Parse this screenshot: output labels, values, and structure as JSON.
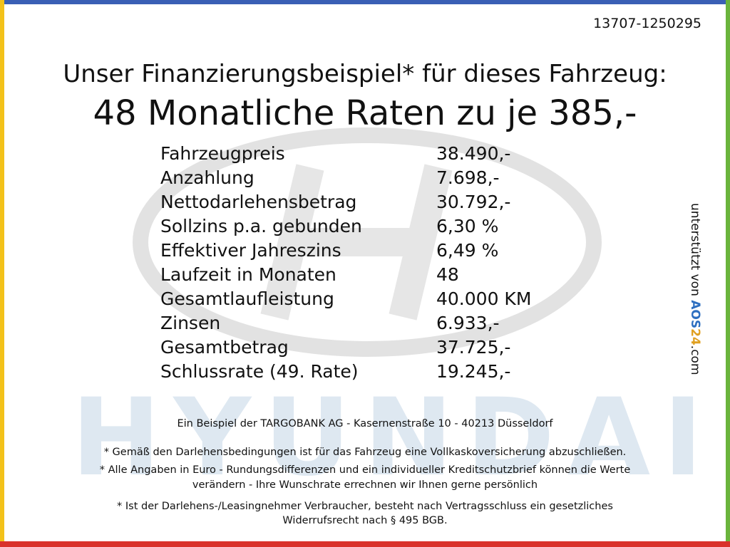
{
  "reference": "13707-1250295",
  "header": {
    "line1": "Unser Finanzierungsbeispiel* für dieses Fahrzeug:",
    "line2": "48 Monatliche Raten zu je 385,-"
  },
  "table": {
    "rows": [
      [
        "Fahrzeugpreis",
        "38.490,-"
      ],
      [
        "Anzahlung",
        "7.698,-"
      ],
      [
        "Nettodarlehensbetrag",
        "30.792,-"
      ],
      [
        "Sollzins p.a. gebunden",
        "6,30 %"
      ],
      [
        "Effektiver Jahreszins",
        "6,49 %"
      ],
      [
        "Laufzeit in Monaten",
        "48"
      ],
      [
        "Gesamtlaufleistung",
        "40.000 KM"
      ],
      [
        "Zinsen",
        "6.933,-"
      ],
      [
        "Gesamtbetrag",
        "37.725,-"
      ],
      [
        "Schlussrate (49. Rate)",
        "19.245,-"
      ]
    ]
  },
  "watermark": "HYUNDAI",
  "lender": "Ein Beispiel der TARGOBANK AG - Kasernenstraße 10 - 40213 Düsseldorf",
  "notes": [
    [
      "* Gemäß den Darlehensbedingungen ist für das Fahrzeug eine Vollkaskoversicherung abzuschließen."
    ],
    [
      "* Alle Angaben in Euro - Rundungsdifferenzen und ein individueller Kreditschutzbrief können die Werte",
      "verändern - Ihre Wunschrate errechnen wir Ihnen gerne persönlich"
    ],
    [
      "* Ist der Darlehens-/Leasingnehmer Verbraucher, besteht nach Vertragsschluss ein gesetzliches",
      "Widerrufsrecht nach § 495 BGB."
    ]
  ],
  "side": {
    "prefix": "unterstützt von",
    "brand_a": "AOS",
    "brand_b": "24",
    "suffix": ".com"
  }
}
